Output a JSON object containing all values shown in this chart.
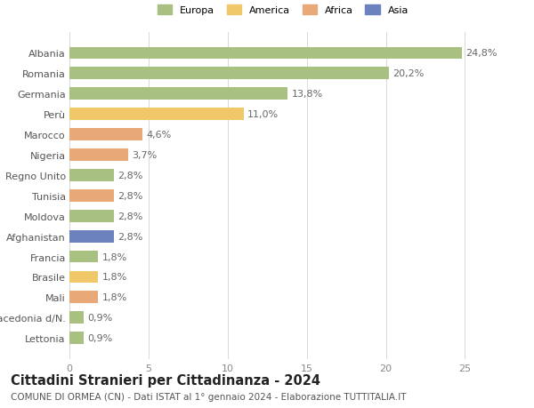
{
  "categories": [
    "Lettonia",
    "Macedonia d/N.",
    "Mali",
    "Brasile",
    "Francia",
    "Afghanistan",
    "Moldova",
    "Tunisia",
    "Regno Unito",
    "Nigeria",
    "Marocco",
    "Perù",
    "Germania",
    "Romania",
    "Albania"
  ],
  "values": [
    0.9,
    0.9,
    1.8,
    1.8,
    1.8,
    2.8,
    2.8,
    2.8,
    2.8,
    3.7,
    4.6,
    11.0,
    13.8,
    20.2,
    24.8
  ],
  "colors": [
    "#a8c080",
    "#a8c080",
    "#e8a878",
    "#f0c86a",
    "#a8c080",
    "#6b82be",
    "#a8c080",
    "#e8a878",
    "#a8c080",
    "#e8a878",
    "#e8a878",
    "#f0c86a",
    "#a8c080",
    "#a8c080",
    "#a8c080"
  ],
  "labels": [
    "0,9%",
    "0,9%",
    "1,8%",
    "1,8%",
    "1,8%",
    "2,8%",
    "2,8%",
    "2,8%",
    "2,8%",
    "3,7%",
    "4,6%",
    "11,0%",
    "13,8%",
    "20,2%",
    "24,8%"
  ],
  "title": "Cittadini Stranieri per Cittadinanza - 2024",
  "subtitle": "COMUNE DI ORMEA (CN) - Dati ISTAT al 1° gennaio 2024 - Elaborazione TUTTITALIA.IT",
  "xlim": [
    0,
    27
  ],
  "xticks": [
    0,
    5,
    10,
    15,
    20,
    25
  ],
  "legend_labels": [
    "Europa",
    "America",
    "Africa",
    "Asia"
  ],
  "legend_colors": [
    "#a8c080",
    "#f0c86a",
    "#e8a878",
    "#6b82be"
  ],
  "bg_color": "#ffffff",
  "bar_height": 0.6,
  "grid_color": "#d8d8d8",
  "label_fontsize": 8,
  "tick_fontsize": 8,
  "title_fontsize": 10.5,
  "subtitle_fontsize": 7.5
}
